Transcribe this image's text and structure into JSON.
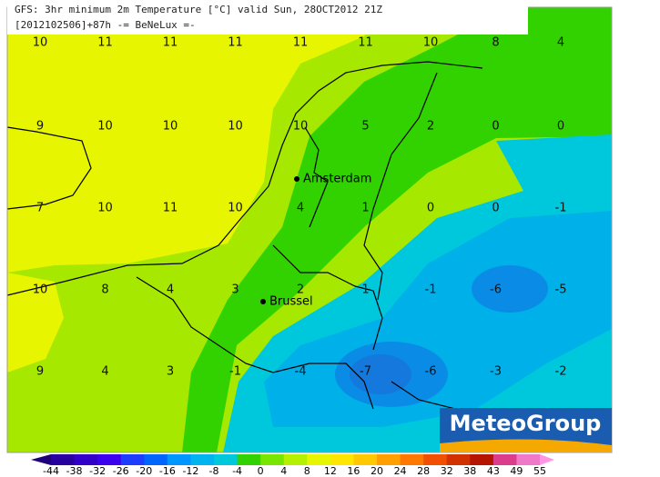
{
  "header": {
    "title": "GFS: 3hr minimum 2m Temperature [°C] valid Sun, 28OCT2012 21Z",
    "subtitle": "[2012102506]+87h  -= BeNeLux =-"
  },
  "grid": [
    [
      10,
      11,
      11,
      11,
      11,
      11,
      10,
      8,
      4
    ],
    [
      9,
      10,
      10,
      10,
      10,
      5,
      2,
      0,
      0
    ],
    [
      7,
      10,
      11,
      10,
      4,
      1,
      0,
      0,
      -1
    ],
    [
      10,
      8,
      4,
      3,
      2,
      1,
      -1,
      -6,
      -5
    ],
    [
      9,
      4,
      3,
      -1,
      -4,
      -7,
      -6,
      -3,
      -2
    ]
  ],
  "cities": [
    "Amsterdam",
    "Brussel"
  ],
  "logo": "MeteoGroup",
  "colorbar": [
    -44,
    -38,
    -32,
    -26,
    -20,
    -16,
    -12,
    -8,
    -4,
    0,
    4,
    8,
    12,
    16,
    20,
    24,
    28,
    32,
    38,
    43,
    49,
    55
  ]
}
